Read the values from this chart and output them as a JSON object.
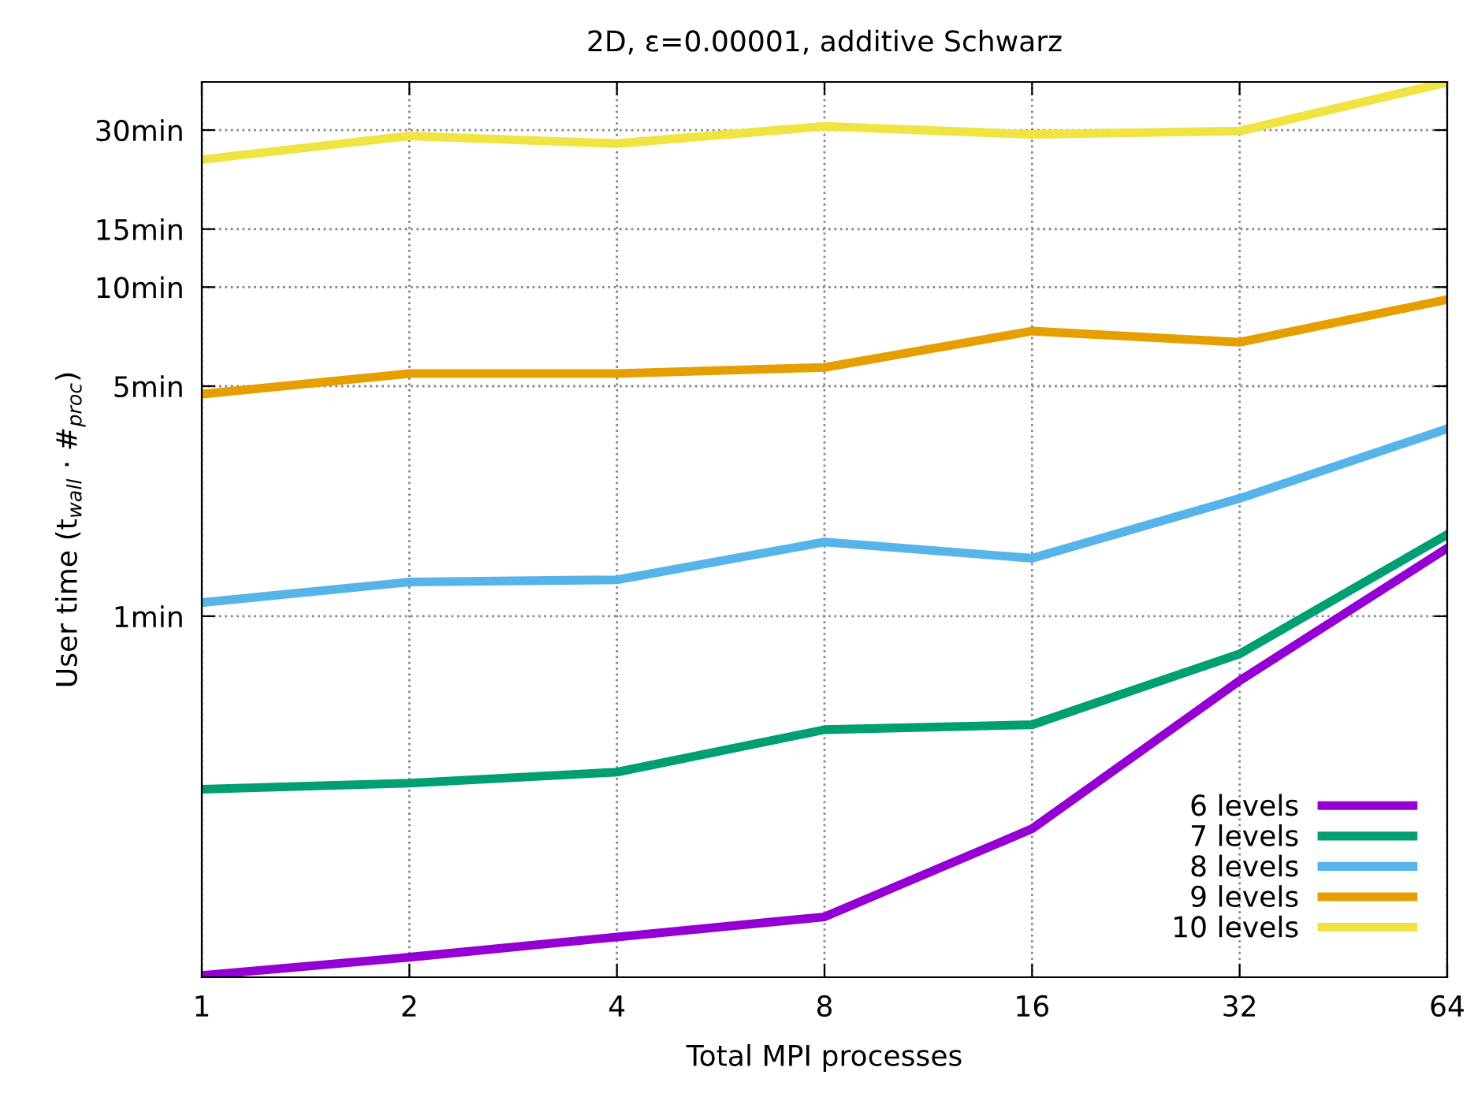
{
  "chart_data": {
    "type": "line",
    "title": "2D, ε=0.00001, additive Schwarz",
    "xlabel": "Total MPI processes",
    "ylabel": "User time (t$_{wall}$ · #$_{proc}$)",
    "x": [
      1,
      2,
      4,
      8,
      16,
      32,
      64
    ],
    "series": [
      {
        "name": "6 levels",
        "color": "#9400d3",
        "values": [
          0.081,
          0.092,
          0.106,
          0.122,
          0.226,
          0.637,
          1.61
        ]
      },
      {
        "name": "7 levels",
        "color": "#009e73",
        "values": [
          0.298,
          0.311,
          0.336,
          0.452,
          0.468,
          0.768,
          1.77
        ]
      },
      {
        "name": "8 levels",
        "color": "#56b4e9",
        "values": [
          1.1,
          1.27,
          1.29,
          1.68,
          1.5,
          2.28,
          3.71
        ]
      },
      {
        "name": "9 levels",
        "color": "#e69f00",
        "values": [
          4.73,
          5.46,
          5.46,
          5.7,
          7.35,
          6.8,
          9.16
        ]
      },
      {
        "name": "10 levels",
        "color": "#f0e442",
        "values": [
          24.4,
          28.8,
          27.3,
          30.8,
          29.1,
          29.8,
          41.9
        ]
      }
    ],
    "log": "xy",
    "xlim": [
      1,
      64
    ],
    "xticks": [
      1,
      2,
      4,
      8,
      16,
      32,
      64
    ],
    "ylim": [
      0.08,
      42
    ],
    "yticks": [
      {
        "value": 1,
        "label": "1min"
      },
      {
        "value": 5,
        "label": "5min"
      },
      {
        "value": 10,
        "label": "10min"
      },
      {
        "value": 15,
        "label": "15min"
      },
      {
        "value": 30,
        "label": "30min"
      }
    ],
    "grid": true,
    "legend": "bottom right",
    "marker": "none",
    "line_style": "solid"
  }
}
